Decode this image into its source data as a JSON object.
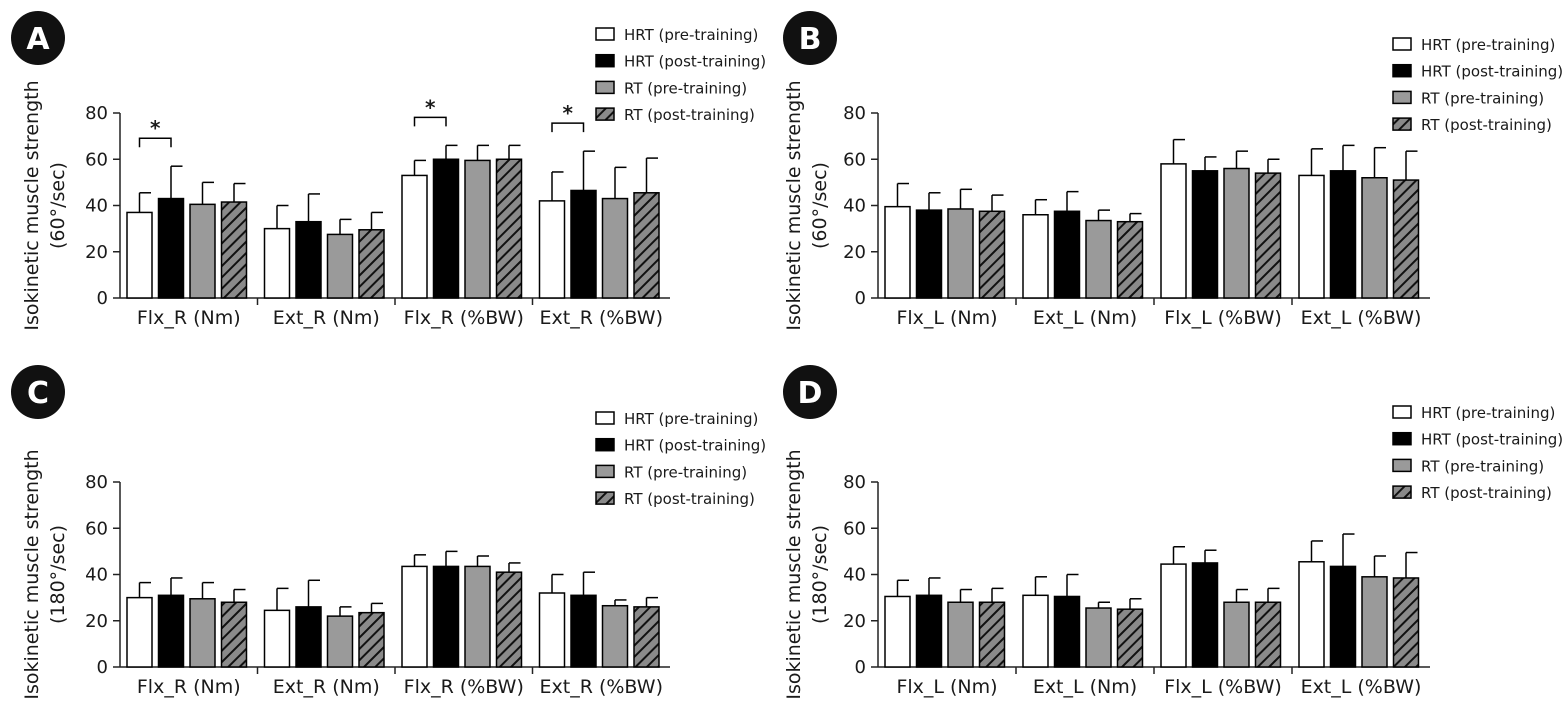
{
  "colors": {
    "hrt_pre": "#ffffff",
    "hrt_post": "#000000",
    "rt_pre": "#9a9a9a",
    "rt_post_hatch_bg": "#8a8a8a",
    "rt_post_hatch_line": "#111111",
    "badge": "#111111",
    "axis": "#222222"
  },
  "chart_data": [
    {
      "type": "bar",
      "panel": "A",
      "ylabel_line1": "Isokinetic muscle strength",
      "ylabel_line2": "(60°/sec)",
      "ylim": [
        0,
        80
      ],
      "yticks": [
        0,
        20,
        40,
        60,
        80
      ],
      "categories": [
        "Flx_R (Nm)",
        "Ext_R (Nm)",
        "Flx_R (%BW)",
        "Ext_R (%BW)"
      ],
      "series": [
        {
          "name": "HRT (pre-training)",
          "values": [
            37,
            30,
            53,
            42
          ],
          "errors": [
            8.5,
            10,
            6.5,
            12.5
          ]
        },
        {
          "name": "HRT (post-training)",
          "values": [
            43,
            33,
            60,
            46.5
          ],
          "errors": [
            14,
            12,
            6,
            17
          ]
        },
        {
          "name": "RT (pre-training)",
          "values": [
            40.5,
            27.5,
            59.5,
            43
          ],
          "errors": [
            9.5,
            6.5,
            6.5,
            13.5
          ]
        },
        {
          "name": "RT (post-training)",
          "values": [
            41.5,
            29.5,
            60,
            45.5
          ],
          "errors": [
            8,
            7.5,
            6,
            15
          ]
        }
      ],
      "significance": [
        {
          "category_index": 0,
          "label": "*"
        },
        {
          "category_index": 2,
          "label": "*"
        },
        {
          "category_index": 3,
          "label": "*"
        }
      ],
      "legend_position": "top-right"
    },
    {
      "type": "bar",
      "panel": "B",
      "ylabel_line1": "Isokinetic muscle strength",
      "ylabel_line2": "(60°/sec)",
      "ylim": [
        0,
        80
      ],
      "yticks": [
        0,
        20,
        40,
        60,
        80
      ],
      "categories": [
        "Flx_L (Nm)",
        "Ext_L (Nm)",
        "Flx_L (%BW)",
        "Ext_L (%BW)"
      ],
      "series": [
        {
          "name": "HRT (pre-training)",
          "values": [
            39.5,
            36,
            58,
            53
          ],
          "errors": [
            10,
            6.5,
            10.5,
            11.5
          ]
        },
        {
          "name": "HRT (post-training)",
          "values": [
            38,
            37.5,
            55,
            55
          ],
          "errors": [
            7.5,
            8.5,
            6,
            11
          ]
        },
        {
          "name": "RT (pre-training)",
          "values": [
            38.5,
            33.5,
            56,
            52
          ],
          "errors": [
            8.5,
            4.5,
            7.5,
            13
          ]
        },
        {
          "name": "RT (post-training)",
          "values": [
            37.5,
            33,
            54,
            51
          ],
          "errors": [
            7,
            3.5,
            6,
            12.5
          ]
        }
      ],
      "significance": [],
      "legend_position": "top-right"
    },
    {
      "type": "bar",
      "panel": "C",
      "ylabel_line1": "Isokinetic muscle strength",
      "ylabel_line2": "(180°/sec)",
      "ylim": [
        0,
        80
      ],
      "yticks": [
        0,
        20,
        40,
        60,
        80
      ],
      "categories": [
        "Flx_R (Nm)",
        "Ext_R (Nm)",
        "Flx_R (%BW)",
        "Ext_R (%BW)"
      ],
      "series": [
        {
          "name": "HRT (pre-training)",
          "values": [
            30,
            24.5,
            43.5,
            32
          ],
          "errors": [
            6.5,
            9.5,
            5,
            8
          ]
        },
        {
          "name": "HRT (post-training)",
          "values": [
            31,
            26,
            43.5,
            31
          ],
          "errors": [
            7.5,
            11.5,
            6.5,
            10
          ]
        },
        {
          "name": "RT (pre-training)",
          "values": [
            29.5,
            22,
            43.5,
            26.5
          ],
          "errors": [
            7,
            4,
            4.5,
            2.5
          ]
        },
        {
          "name": "RT (post-training)",
          "values": [
            28,
            23.5,
            41,
            26
          ],
          "errors": [
            5.5,
            4,
            4,
            4
          ]
        }
      ],
      "significance": [],
      "legend_position": "top-right"
    },
    {
      "type": "bar",
      "panel": "D",
      "ylabel_line1": "Isokinetic muscle strength",
      "ylabel_line2": "(180°/sec)",
      "ylim": [
        0,
        80
      ],
      "yticks": [
        0,
        20,
        40,
        60,
        80
      ],
      "categories": [
        "Flx_L (Nm)",
        "Ext_L (Nm)",
        "Flx_L (%BW)",
        "Ext_L (%BW)"
      ],
      "series": [
        {
          "name": "HRT (pre-training)",
          "values": [
            30.5,
            31,
            44.5,
            45.5
          ],
          "errors": [
            7,
            8,
            7.5,
            9
          ]
        },
        {
          "name": "HRT (post-training)",
          "values": [
            31,
            30.5,
            45,
            43.5
          ],
          "errors": [
            7.5,
            9.5,
            5.5,
            14
          ]
        },
        {
          "name": "RT (pre-training)",
          "values": [
            28,
            25.5,
            28,
            39
          ],
          "errors": [
            5.5,
            2.5,
            5.5,
            9
          ]
        },
        {
          "name": "RT (post-training)",
          "values": [
            28,
            25,
            28,
            38.5
          ],
          "errors": [
            6,
            4.5,
            6,
            11
          ]
        }
      ],
      "significance": [],
      "legend_position": "top-right"
    }
  ]
}
